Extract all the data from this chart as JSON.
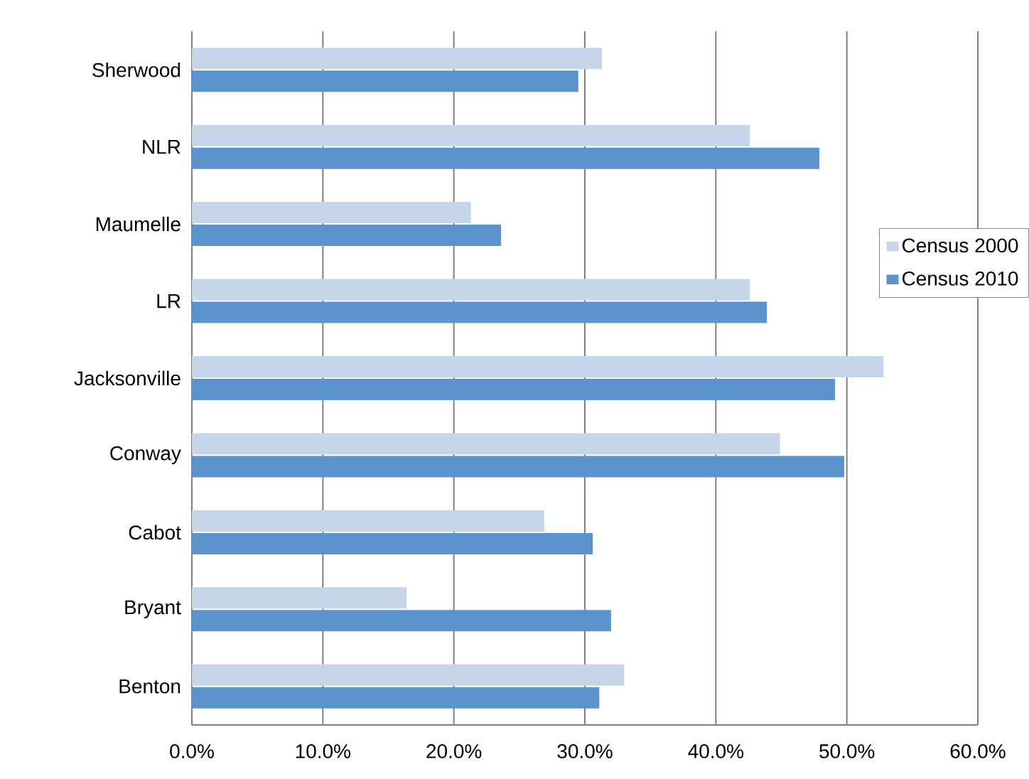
{
  "chart_data": {
    "type": "bar",
    "orientation": "horizontal",
    "categories": [
      "Sherwood",
      "NLR",
      "Maumelle",
      "LR",
      "Jacksonville",
      "Conway",
      "Cabot",
      "Bryant",
      "Benton"
    ],
    "series": [
      {
        "name": "Census 2000",
        "color": "#c6d6ea",
        "values": [
          31.3,
          42.6,
          21.3,
          42.6,
          52.8,
          44.9,
          26.9,
          16.4,
          33.0
        ]
      },
      {
        "name": "Census 2010",
        "color": "#5b93cc",
        "values": [
          29.5,
          47.9,
          23.6,
          43.9,
          49.1,
          49.8,
          30.6,
          32.0,
          31.1
        ]
      }
    ],
    "xlim": [
      0,
      60
    ],
    "xticks": [
      {
        "value": 0,
        "label": "0.0%"
      },
      {
        "value": 10,
        "label": "10.0%"
      },
      {
        "value": 20,
        "label": "20.0%"
      },
      {
        "value": 30,
        "label": "30.0%"
      },
      {
        "value": 40,
        "label": "40.0%"
      },
      {
        "value": 50,
        "label": "50.0%"
      },
      {
        "value": 60,
        "label": "60.0%"
      }
    ],
    "grid": "x",
    "legend": "right"
  }
}
